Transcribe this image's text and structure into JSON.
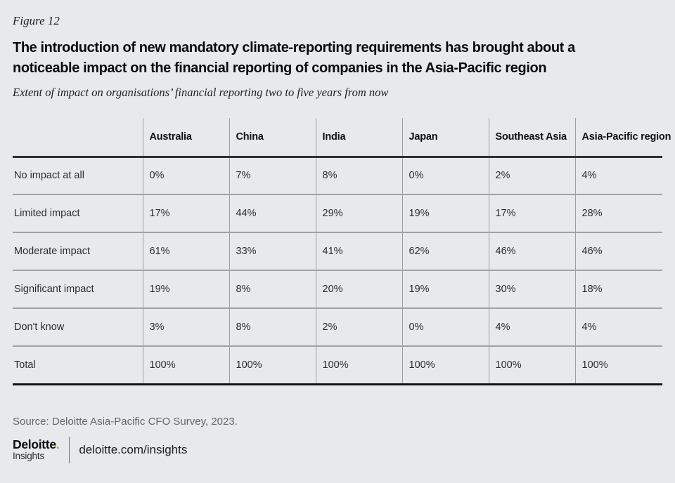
{
  "page": {
    "figure_label": "Figure 12",
    "title_line1": "The introduction of new mandatory climate-reporting requirements has brought about a",
    "title_line2": "noticeable impact on the financial reporting of companies in the Asia-Pacific region",
    "subtitle": "Extent of impact on organisations’ financial reporting two to five years from now",
    "source": "Source: Deloitte Asia-Pacific CFO Survey, 2023."
  },
  "chart_data": {
    "type": "table",
    "title": "Extent of impact on organisations’ financial reporting two to five years from now",
    "columns": [
      "Australia",
      "China",
      "India",
      "Japan",
      "Southeast Asia",
      "Asia-Pacific region"
    ],
    "rows": [
      {
        "label": "No impact at all",
        "values": [
          "0%",
          "7%",
          "8%",
          "0%",
          "2%",
          "4%"
        ]
      },
      {
        "label": "Limited impact",
        "values": [
          "17%",
          "44%",
          "29%",
          "19%",
          "17%",
          "28%"
        ]
      },
      {
        "label": "Moderate impact",
        "values": [
          "61%",
          "33%",
          "41%",
          "62%",
          "46%",
          "46%"
        ]
      },
      {
        "label": "Significant impact",
        "values": [
          "19%",
          "8%",
          "20%",
          "19%",
          "30%",
          "18%"
        ]
      },
      {
        "label": "Don't know",
        "values": [
          "3%",
          "8%",
          "2%",
          "0%",
          "4%",
          "4%"
        ]
      },
      {
        "label": "Total",
        "values": [
          "100%",
          "100%",
          "100%",
          "100%",
          "100%",
          "100%"
        ]
      }
    ]
  },
  "footer": {
    "brand": "Deloitte",
    "brand_dot": ".",
    "brand_sub": "Insights",
    "link": "deloitte.com/insights"
  },
  "colors": {
    "background": "#e8e9ea",
    "text_primary": "#0b0b0b",
    "text_secondary": "#63666a",
    "deloitte_green": "#86bc25",
    "grid_gray": "#9e9e9e",
    "grid_dark": "#2f2f2f"
  }
}
